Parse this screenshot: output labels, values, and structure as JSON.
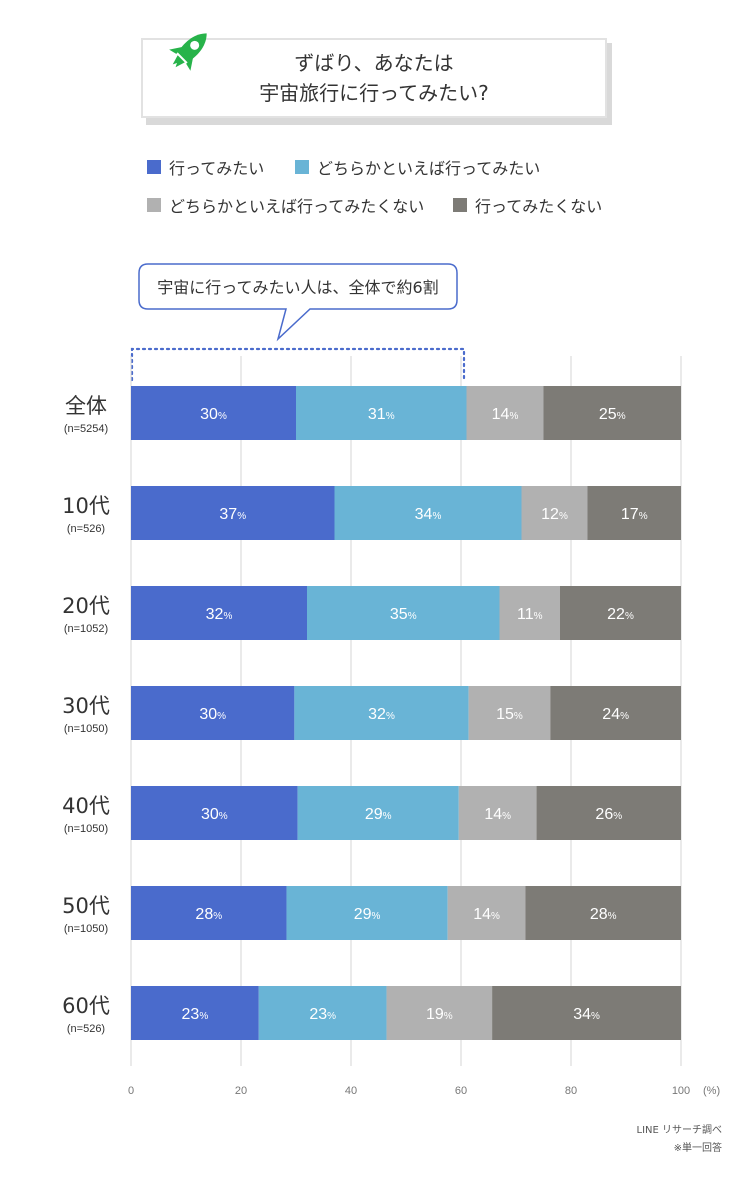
{
  "header": {
    "title_line1": "ずばり、あなたは",
    "title_line2": "宇宙旅行に行ってみたい?",
    "icon": "rocket-icon"
  },
  "legend": [
    {
      "label": "行ってみたい",
      "color": "#4a6bcc"
    },
    {
      "label": "どちらかといえば行ってみたい",
      "color": "#69b4d6"
    },
    {
      "label": "どちらかといえば行ってみたくない",
      "color": "#b1b1b1"
    },
    {
      "label": "行ってみたくない",
      "color": "#7d7b76"
    }
  ],
  "callout": {
    "text": "宇宙に行ってみたい人は、全体で約6割"
  },
  "chart_data": {
    "type": "bar",
    "orientation": "horizontal",
    "stacked": true,
    "categories": [
      {
        "label": "全体",
        "n": "(n=5254)"
      },
      {
        "label": "10代",
        "n": "(n=526)"
      },
      {
        "label": "20代",
        "n": "(n=1052)"
      },
      {
        "label": "30代",
        "n": "(n=1050)"
      },
      {
        "label": "40代",
        "n": "(n=1050)"
      },
      {
        "label": "50代",
        "n": "(n=1050)"
      },
      {
        "label": "60代",
        "n": "(n=526)"
      }
    ],
    "series": [
      {
        "name": "行ってみたい",
        "values": [
          30,
          37,
          32,
          30,
          30,
          28,
          23
        ]
      },
      {
        "name": "どちらかといえば行ってみたい",
        "values": [
          31,
          34,
          35,
          32,
          29,
          29,
          23
        ]
      },
      {
        "name": "どちらかといえば行ってみたくない",
        "values": [
          14,
          12,
          11,
          15,
          14,
          14,
          19
        ]
      },
      {
        "name": "行ってみたくない",
        "values": [
          25,
          17,
          22,
          24,
          26,
          28,
          34
        ]
      }
    ],
    "xlim": [
      0,
      100
    ],
    "x_ticks": [
      0,
      20,
      40,
      60,
      80,
      100
    ],
    "x_unit": "(%)",
    "value_suffix": "%",
    "grid": true
  },
  "source": {
    "line1": "LINE リサーチ調べ",
    "line2": "※単一回答"
  }
}
